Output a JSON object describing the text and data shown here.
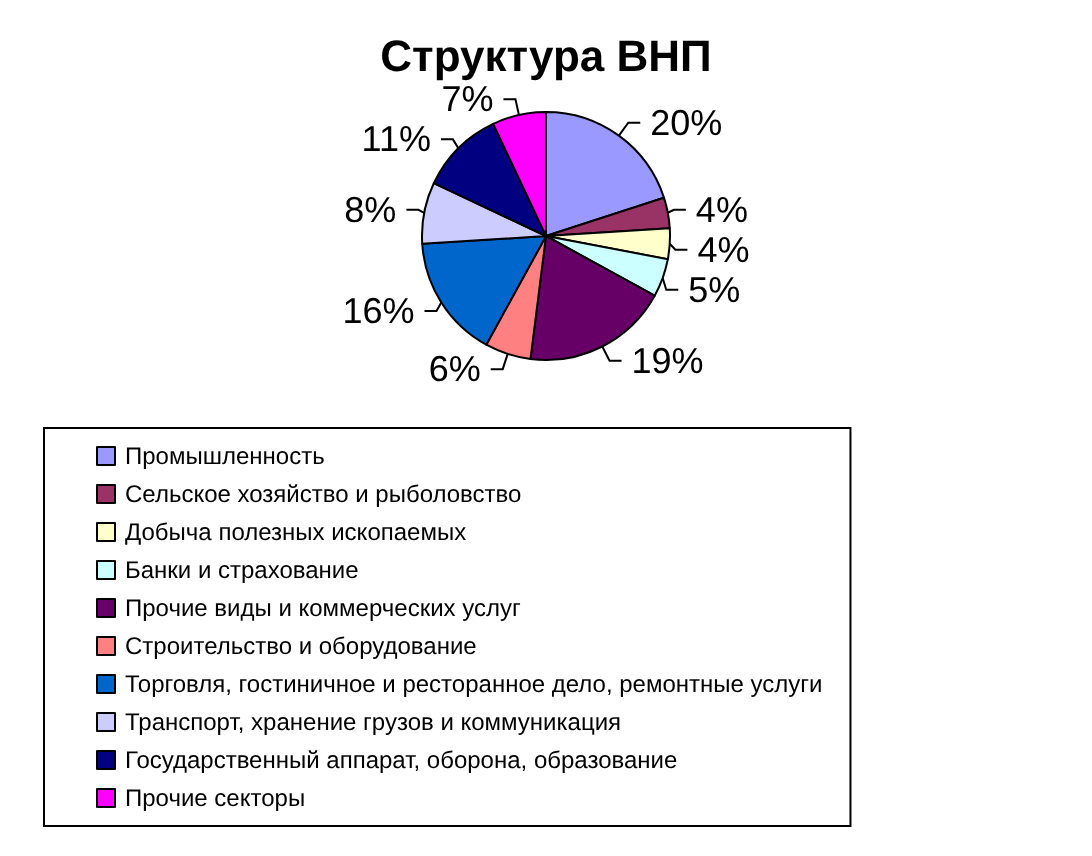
{
  "chart_data": {
    "type": "pie",
    "title": "Структура ВНП",
    "categories": [
      "Промышленность",
      "Сельское хозяйство и рыболовство",
      "Добыча полезных ископаемых",
      "Банки и страхование",
      "Прочие виды и коммерческих услуг",
      "Строительство и оборудование",
      "Торговля, гостиничное и ресторанное дело, ремонтные услуги",
      "Транспорт, хранение грузов и коммуникация",
      "Государственный аппарат, оборона, образование",
      "Прочие секторы"
    ],
    "values": [
      20,
      4,
      4,
      5,
      19,
      6,
      16,
      8,
      11,
      7
    ],
    "value_labels": [
      "20%",
      "4%",
      "4%",
      "5%",
      "19%",
      "6%",
      "16%",
      "8%",
      "11%",
      "7%"
    ],
    "colors": [
      "#9999ff",
      "#993366",
      "#ffffcc",
      "#ccffff",
      "#660066",
      "#ff8080",
      "#0066cc",
      "#ccccff",
      "#000080",
      "#ff00ff"
    ],
    "legend": "bottom"
  }
}
